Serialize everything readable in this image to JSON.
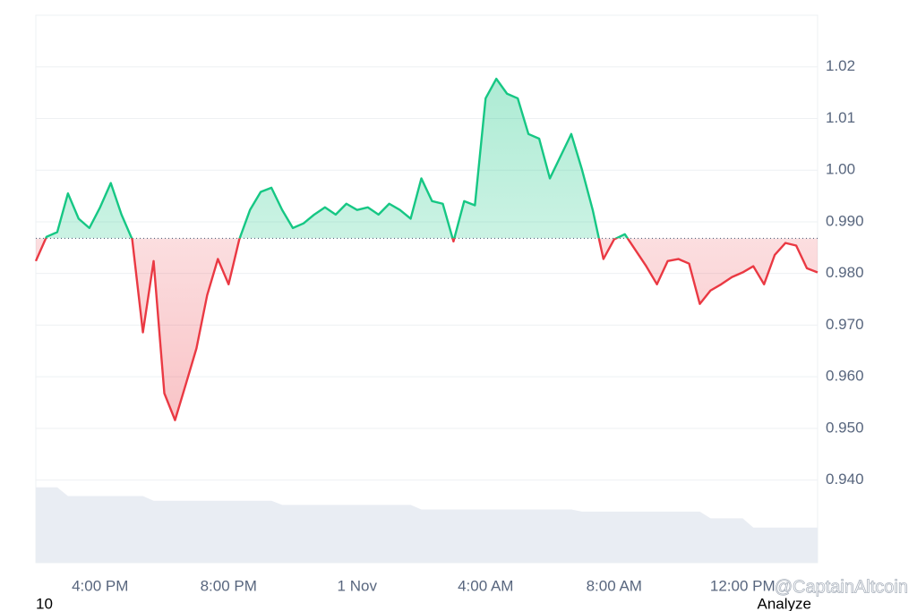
{
  "chart_data": {
    "type": "baseline-line",
    "categories": [
      null,
      null,
      null,
      null,
      null,
      null,
      "4:00 PM",
      null,
      null,
      null,
      null,
      null,
      null,
      null,
      null,
      null,
      null,
      null,
      "8:00 PM",
      null,
      null,
      null,
      null,
      null,
      null,
      null,
      null,
      null,
      null,
      null,
      "1 Nov",
      null,
      null,
      null,
      null,
      null,
      null,
      null,
      null,
      null,
      null,
      null,
      "4:00 AM",
      null,
      null,
      null,
      null,
      null,
      null,
      null,
      null,
      null,
      null,
      null,
      "8:00 AM",
      null,
      null,
      null,
      null,
      null,
      null,
      null,
      null,
      null,
      null,
      null,
      "12:00 PM",
      null,
      null,
      null,
      null,
      null,
      null,
      null
    ],
    "values": [
      0.9824,
      0.9871,
      0.988,
      0.9955,
      0.9906,
      0.9888,
      0.9928,
      0.9975,
      0.9914,
      0.9866,
      0.9686,
      0.9824,
      0.9568,
      0.9516,
      0.9585,
      0.9655,
      0.9758,
      0.9828,
      0.9779,
      0.9866,
      0.9923,
      0.9958,
      0.9966,
      0.9923,
      0.9888,
      0.9897,
      0.9914,
      0.9928,
      0.9914,
      0.9935,
      0.9923,
      0.9928,
      0.9914,
      0.9935,
      0.9923,
      0.9906,
      0.9984,
      0.994,
      0.9935,
      0.9862,
      0.994,
      0.9932,
      1.0139,
      1.0177,
      1.0148,
      1.0139,
      1.007,
      1.0061,
      0.9984,
      1.0027,
      1.007,
      1.0001,
      0.9923,
      0.9828,
      0.9866,
      0.9876,
      0.9845,
      0.9814,
      0.9779,
      0.9824,
      0.9828,
      0.9819,
      0.9741,
      0.9767,
      0.9779,
      0.9793,
      0.9802,
      0.9814,
      0.9779,
      0.9836,
      0.9859,
      0.9854,
      0.981,
      0.9802
    ],
    "baseline": 0.9868,
    "up_color": "#16c784",
    "down_color": "#ea3943",
    "volume": {
      "color": "#e9edf3",
      "values": [
        0.9386,
        0.9386,
        0.9386,
        0.9369,
        0.9369,
        0.9369,
        0.9369,
        0.9369,
        0.9369,
        0.9369,
        0.9369,
        0.936,
        0.936,
        0.936,
        0.936,
        0.936,
        0.936,
        0.936,
        0.936,
        0.936,
        0.936,
        0.936,
        0.936,
        0.9352,
        0.9352,
        0.9352,
        0.9352,
        0.9352,
        0.9352,
        0.9352,
        0.9352,
        0.9352,
        0.9352,
        0.9352,
        0.9352,
        0.9352,
        0.9343,
        0.9343,
        0.9343,
        0.9343,
        0.9343,
        0.9343,
        0.9343,
        0.9343,
        0.9343,
        0.9343,
        0.9343,
        0.9343,
        0.9343,
        0.9343,
        0.9343,
        0.9339,
        0.9339,
        0.9339,
        0.9339,
        0.9339,
        0.9339,
        0.9339,
        0.9339,
        0.9339,
        0.9339,
        0.9339,
        0.9339,
        0.9326,
        0.9326,
        0.9326,
        0.9326,
        0.9308,
        0.9308,
        0.9308,
        0.9308,
        0.9308,
        0.9308,
        0.9308
      ]
    },
    "ylim": [
      0.924,
      1.03
    ],
    "yticks": [
      1.02,
      1.01,
      {
        "value": 1,
        "label": "1.00"
      },
      {
        "value": 0.99,
        "label": "0.990"
      },
      {
        "value": 0.98,
        "label": "0.980"
      },
      {
        "value": 0.97,
        "label": "0.970"
      },
      {
        "value": 0.96,
        "label": "0.960"
      },
      {
        "value": 0.95,
        "label": "0.950"
      },
      {
        "value": 0.94,
        "label": "0.940"
      }
    ],
    "grid": true
  },
  "footer": {
    "left": "10",
    "right": "Analyze",
    "watermark": "@CaptainAltcoin"
  }
}
